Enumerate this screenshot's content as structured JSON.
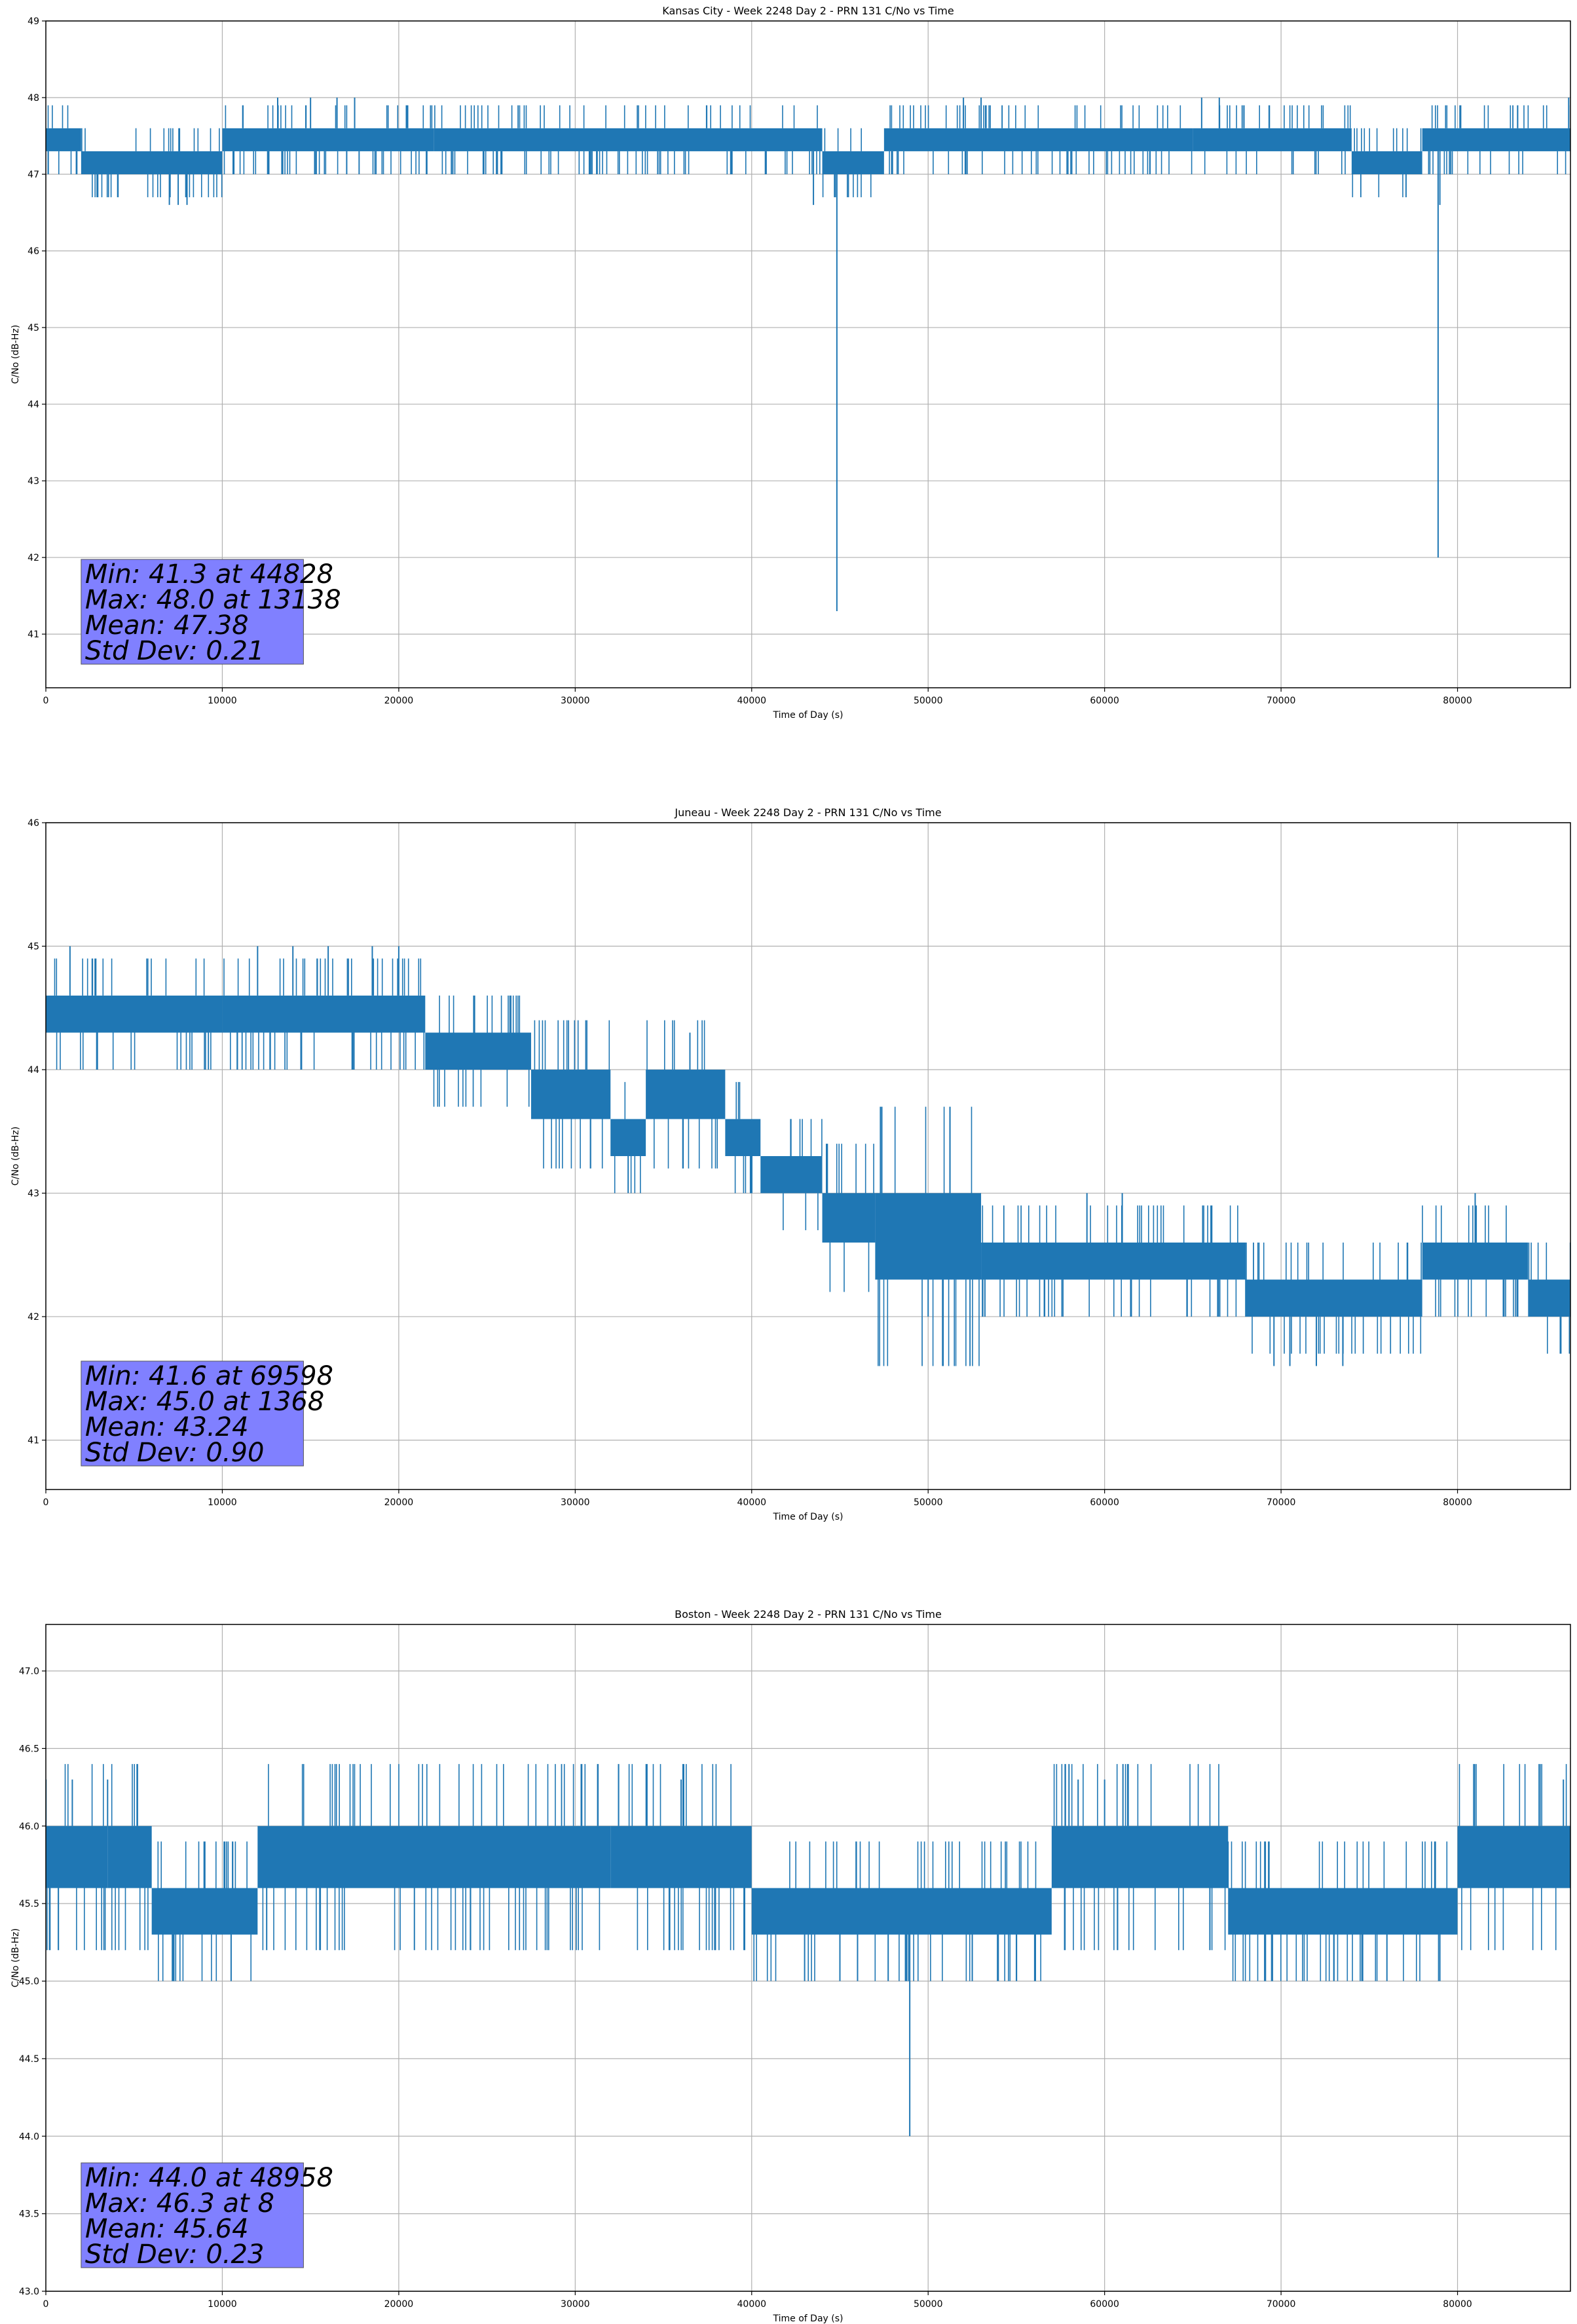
{
  "chart_data": [
    {
      "type": "line",
      "title": "Kansas City - Week 2248 Day 2 - PRN 131 C/No vs Time",
      "xlabel": "Time of Day (s)",
      "ylabel": "C/No (dB-Hz)",
      "xlim": [
        0,
        86400
      ],
      "ylim": [
        40.3,
        49.0
      ],
      "xticks": [
        0,
        10000,
        20000,
        30000,
        40000,
        50000,
        60000,
        70000,
        80000
      ],
      "xtick_labels": [
        "0",
        "10000",
        "20000",
        "30000",
        "40000",
        "50000",
        "60000",
        "70000",
        "80000"
      ],
      "yticks": [
        41,
        42,
        43,
        44,
        45,
        46,
        47,
        48,
        49
      ],
      "ytick_labels": [
        "41",
        "42",
        "43",
        "44",
        "45",
        "46",
        "47",
        "48",
        "49"
      ],
      "grid": true,
      "series_color": "#1f77b4",
      "bands": [
        {
          "x": [
            0,
            2000
          ],
          "y": [
            47.3,
            47.6
          ]
        },
        {
          "x": [
            2000,
            10000
          ],
          "y": [
            47.0,
            47.3
          ]
        },
        {
          "x": [
            10000,
            22000
          ],
          "y": [
            47.3,
            47.6
          ]
        },
        {
          "x": [
            22000,
            44000
          ],
          "y": [
            47.3,
            47.6
          ]
        },
        {
          "x": [
            44000,
            47500
          ],
          "y": [
            47.0,
            47.3
          ]
        },
        {
          "x": [
            47500,
            65000
          ],
          "y": [
            47.3,
            47.6
          ]
        },
        {
          "x": [
            65000,
            74000
          ],
          "y": [
            47.3,
            47.6
          ]
        },
        {
          "x": [
            74000,
            78000
          ],
          "y": [
            47.0,
            47.3
          ]
        },
        {
          "x": [
            78000,
            86400
          ],
          "y": [
            47.3,
            47.6
          ]
        }
      ],
      "spikes": [
        {
          "x": 7000,
          "y": 46.6
        },
        {
          "x": 7500,
          "y": 46.6
        },
        {
          "x": 8000,
          "y": 46.6
        },
        {
          "x": 13138,
          "y": 48.0
        },
        {
          "x": 15000,
          "y": 48.0
        },
        {
          "x": 16500,
          "y": 48.0
        },
        {
          "x": 17500,
          "y": 48.0
        },
        {
          "x": 43500,
          "y": 46.6
        },
        {
          "x": 44828,
          "y": 41.3
        },
        {
          "x": 52000,
          "y": 48.0
        },
        {
          "x": 53000,
          "y": 48.0
        },
        {
          "x": 65500,
          "y": 48.0
        },
        {
          "x": 66500,
          "y": 48.0
        },
        {
          "x": 78900,
          "y": 42.0
        },
        {
          "x": 79000,
          "y": 46.6
        },
        {
          "x": 86300,
          "y": 48.0
        }
      ],
      "stats": {
        "min_label": "Min: 41.3 at 44828",
        "max_label": "Max: 48.0 at 13138",
        "mean_label": "Mean: 47.38",
        "std_label": "Std Dev: 0.21"
      }
    },
    {
      "type": "line",
      "title": "Juneau - Week 2248 Day 2 - PRN 131 C/No vs Time",
      "xlabel": "Time of Day (s)",
      "ylabel": "C/No (dB-Hz)",
      "xlim": [
        0,
        86400
      ],
      "ylim": [
        40.6,
        46.0
      ],
      "xticks": [
        0,
        10000,
        20000,
        30000,
        40000,
        50000,
        60000,
        70000,
        80000
      ],
      "xtick_labels": [
        "0",
        "10000",
        "20000",
        "30000",
        "40000",
        "50000",
        "60000",
        "70000",
        "80000"
      ],
      "yticks": [
        41,
        42,
        43,
        44,
        45,
        46
      ],
      "ytick_labels": [
        "41",
        "42",
        "43",
        "44",
        "45",
        "46"
      ],
      "grid": true,
      "series_color": "#1f77b4",
      "bands": [
        {
          "x": [
            0,
            10000
          ],
          "y": [
            44.3,
            44.6
          ]
        },
        {
          "x": [
            10000,
            21500
          ],
          "y": [
            44.3,
            44.6
          ]
        },
        {
          "x": [
            21500,
            27500
          ],
          "y": [
            44.0,
            44.3
          ]
        },
        {
          "x": [
            27500,
            32000
          ],
          "y": [
            43.6,
            44.0
          ]
        },
        {
          "x": [
            32000,
            34000
          ],
          "y": [
            43.3,
            43.6
          ]
        },
        {
          "x": [
            34000,
            38500
          ],
          "y": [
            43.6,
            44.0
          ]
        },
        {
          "x": [
            38500,
            40500
          ],
          "y": [
            43.3,
            43.6
          ]
        },
        {
          "x": [
            40500,
            44000
          ],
          "y": [
            43.0,
            43.3
          ]
        },
        {
          "x": [
            44000,
            47000
          ],
          "y": [
            42.6,
            43.0
          ]
        },
        {
          "x": [
            47000,
            53000
          ],
          "y": [
            42.3,
            43.0
          ]
        },
        {
          "x": [
            53000,
            68000
          ],
          "y": [
            42.3,
            42.6
          ]
        },
        {
          "x": [
            68000,
            78000
          ],
          "y": [
            42.0,
            42.3
          ]
        },
        {
          "x": [
            78000,
            84000
          ],
          "y": [
            42.3,
            42.6
          ]
        },
        {
          "x": [
            84000,
            86400
          ],
          "y": [
            42.0,
            42.3
          ]
        }
      ],
      "spikes": [
        {
          "x": 1368,
          "y": 45.0
        },
        {
          "x": 12000,
          "y": 45.0
        },
        {
          "x": 14000,
          "y": 45.0
        },
        {
          "x": 16000,
          "y": 45.0
        },
        {
          "x": 18500,
          "y": 45.0
        },
        {
          "x": 20000,
          "y": 45.0
        },
        {
          "x": 36500,
          "y": 44.3
        },
        {
          "x": 33000,
          "y": 43.0
        },
        {
          "x": 50000,
          "y": 42.0
        },
        {
          "x": 59000,
          "y": 43.0
        },
        {
          "x": 61000,
          "y": 43.0
        },
        {
          "x": 69598,
          "y": 41.6
        },
        {
          "x": 70500,
          "y": 41.6
        },
        {
          "x": 72000,
          "y": 41.6
        },
        {
          "x": 73500,
          "y": 41.6
        },
        {
          "x": 81000,
          "y": 43.0
        }
      ],
      "stats": {
        "min_label": "Min: 41.6 at 69598",
        "max_label": "Max: 45.0 at 1368",
        "mean_label": "Mean: 43.24",
        "std_label": "Std Dev: 0.90"
      }
    },
    {
      "type": "line",
      "title": "Boston - Week 2248 Day 2 - PRN 131 C/No vs Time",
      "xlabel": "Time of Day (s)",
      "ylabel": "C/No (dB-Hz)",
      "xlim": [
        0,
        86400
      ],
      "ylim": [
        43.0,
        47.3
      ],
      "xticks": [
        0,
        10000,
        20000,
        30000,
        40000,
        50000,
        60000,
        70000,
        80000
      ],
      "xtick_labels": [
        "0",
        "10000",
        "20000",
        "30000",
        "40000",
        "50000",
        "60000",
        "70000",
        "80000"
      ],
      "yticks": [
        43.0,
        43.5,
        44.0,
        44.5,
        45.0,
        45.5,
        46.0,
        46.5,
        47.0
      ],
      "ytick_labels": [
        "43.0",
        "43.5",
        "44.0",
        "44.5",
        "45.0",
        "45.5",
        "46.0",
        "46.5",
        "47.0"
      ],
      "grid": true,
      "series_color": "#1f77b4",
      "bands": [
        {
          "x": [
            0,
            3500
          ],
          "y": [
            45.6,
            46.0
          ]
        },
        {
          "x": [
            3500,
            6000
          ],
          "y": [
            45.6,
            46.0
          ]
        },
        {
          "x": [
            6000,
            12000
          ],
          "y": [
            45.3,
            45.6
          ]
        },
        {
          "x": [
            12000,
            32000
          ],
          "y": [
            45.6,
            46.0
          ]
        },
        {
          "x": [
            32000,
            40000
          ],
          "y": [
            45.6,
            46.0
          ]
        },
        {
          "x": [
            40000,
            57000
          ],
          "y": [
            45.3,
            45.6
          ]
        },
        {
          "x": [
            57000,
            67000
          ],
          "y": [
            45.6,
            46.0
          ]
        },
        {
          "x": [
            67000,
            80000
          ],
          "y": [
            45.3,
            45.6
          ]
        },
        {
          "x": [
            80000,
            86400
          ],
          "y": [
            45.6,
            46.0
          ]
        }
      ],
      "spikes": [
        {
          "x": 8,
          "y": 46.3
        },
        {
          "x": 1500,
          "y": 46.3
        },
        {
          "x": 3500,
          "y": 46.3
        },
        {
          "x": 10500,
          "y": 45.0
        },
        {
          "x": 36000,
          "y": 46.3
        },
        {
          "x": 43000,
          "y": 45.0
        },
        {
          "x": 45000,
          "y": 45.0
        },
        {
          "x": 46000,
          "y": 45.0
        },
        {
          "x": 48958,
          "y": 44.0
        },
        {
          "x": 52500,
          "y": 45.0
        },
        {
          "x": 58500,
          "y": 46.3
        },
        {
          "x": 60000,
          "y": 46.3
        },
        {
          "x": 73000,
          "y": 45.0
        },
        {
          "x": 76000,
          "y": 45.0
        },
        {
          "x": 79000,
          "y": 45.0
        },
        {
          "x": 86000,
          "y": 46.3
        }
      ],
      "stats": {
        "min_label": "Min: 44.0 at 48958",
        "max_label": "Max: 46.3 at 8",
        "mean_label": "Mean: 45.64",
        "std_label": "Std Dev: 0.23"
      }
    }
  ]
}
